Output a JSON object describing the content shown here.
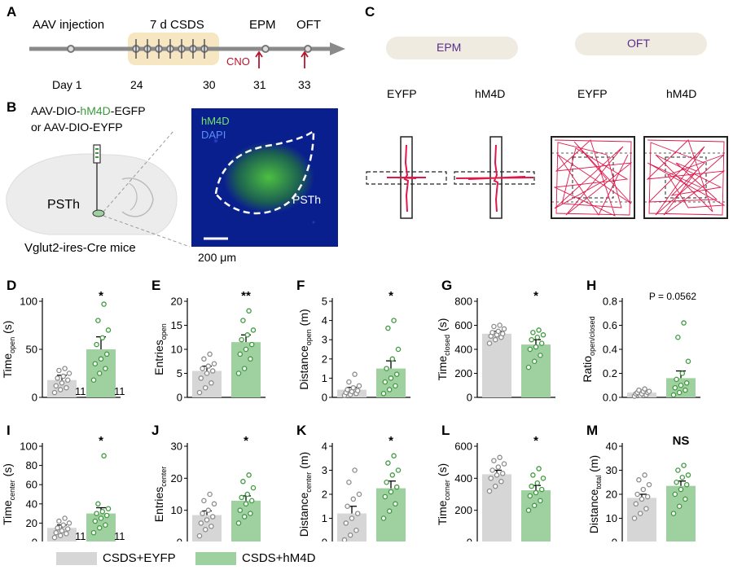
{
  "panels": {
    "A": "A",
    "B": "B",
    "C": "C",
    "D": "D",
    "E": "E",
    "F": "F",
    "G": "G",
    "H": "H",
    "I": "I",
    "J": "J",
    "K": "K",
    "L": "L",
    "M": "M"
  },
  "timeline": {
    "aav": "AAV injection",
    "csds": "7 d CSDS",
    "epm": "EPM",
    "oft": "OFT",
    "cno": "CNO",
    "days": [
      "Day 1",
      "24",
      "30",
      "31",
      "33"
    ]
  },
  "panel_b": {
    "line1_a": "AAV-DIO-",
    "line1_b": "hM4D",
    "line1_c": "-EGFP",
    "line2": "or AAV-DIO-EYFP",
    "region": "PSTh",
    "mice": "Vglut2-ires-Cre mice",
    "micro_label1": "hM4D",
    "micro_label2": "DAPI",
    "micro_region": "PSTh",
    "scale": "200 μm"
  },
  "panel_c": {
    "epm_title": "EPM",
    "oft_title": "OFT",
    "labels": [
      "EYFP",
      "hM4D",
      "EYFP",
      "hM4D"
    ]
  },
  "colors": {
    "eyfp": "#d6d6d6",
    "hm4d": "#9fd09f",
    "eyfp_dot": "#8c8c8c",
    "hm4d_dot": "#3f9a3f",
    "trace": "#e0184a",
    "timeline": "#8a8a8a"
  },
  "legend": {
    "eyfp": "CSDS+EYFP",
    "hm4d": "CSDS+hM4D"
  },
  "chart_data": [
    {
      "id": "D",
      "type": "bar",
      "categories": [
        "CSDS+EYFP",
        "CSDS+hM4D"
      ],
      "ylabel": "Time",
      "ysub": "open",
      "yunit": " (s)",
      "ylim": [
        0,
        100
      ],
      "yticks": [
        "0",
        "50",
        "100"
      ],
      "values": [
        18,
        50
      ],
      "sem": [
        5,
        13
      ],
      "sig": "*",
      "n_labels": [
        "11",
        "11"
      ],
      "points": [
        [
          5,
          8,
          10,
          12,
          15,
          18,
          20,
          22,
          25,
          28,
          30
        ],
        [
          18,
          25,
          30,
          35,
          40,
          45,
          55,
          62,
          70,
          80,
          97
        ]
      ]
    },
    {
      "id": "E",
      "type": "bar",
      "categories": [
        "CSDS+EYFP",
        "CSDS+hM4D"
      ],
      "ylabel": "Entries",
      "ysub": "open",
      "yunit": "",
      "ylim": [
        0,
        20
      ],
      "yticks": [
        "0",
        "5",
        "10",
        "15",
        "20"
      ],
      "values": [
        5.5,
        11.5
      ],
      "sem": [
        1,
        1.5
      ],
      "sig": "**",
      "points": [
        [
          1,
          2,
          3,
          4,
          5,
          5.5,
          6,
          6.5,
          7,
          8,
          9
        ],
        [
          5,
          6,
          8,
          9,
          10,
          11,
          12,
          13,
          14,
          16,
          18
        ]
      ]
    },
    {
      "id": "F",
      "type": "bar",
      "categories": [
        "CSDS+EYFP",
        "CSDS+hM4D"
      ],
      "ylabel": "Distance",
      "ysub": "open",
      "yunit": " (m)",
      "ylim": [
        0,
        5
      ],
      "yticks": [
        "0",
        "1",
        "2",
        "3",
        "4",
        "5"
      ],
      "values": [
        0.4,
        1.5
      ],
      "sem": [
        0.12,
        0.4
      ],
      "sig": "*",
      "points": [
        [
          0.1,
          0.15,
          0.2,
          0.25,
          0.3,
          0.35,
          0.4,
          0.5,
          0.6,
          0.8,
          1.2
        ],
        [
          0.2,
          0.4,
          0.6,
          0.8,
          1.0,
          1.2,
          1.5,
          2.0,
          2.5,
          3.6,
          4.0
        ]
      ]
    },
    {
      "id": "G",
      "type": "bar",
      "categories": [
        "CSDS+EYFP",
        "CSDS+hM4D"
      ],
      "ylabel": "Time",
      "ysub": "closed",
      "yunit": " (s)",
      "ylim": [
        0,
        800
      ],
      "yticks": [
        "0",
        "200",
        "400",
        "600",
        "800"
      ],
      "values": [
        530,
        440
      ],
      "sem": [
        20,
        40
      ],
      "sig": "*",
      "points": [
        [
          450,
          480,
          500,
          510,
          520,
          530,
          540,
          550,
          570,
          590,
          600
        ],
        [
          250,
          300,
          350,
          400,
          420,
          450,
          480,
          500,
          520,
          540,
          560
        ]
      ]
    },
    {
      "id": "H",
      "type": "bar",
      "categories": [
        "CSDS+EYFP",
        "CSDS+hM4D"
      ],
      "ylabel": "Ratio",
      "ysub": "open/closed",
      "yunit": "",
      "ylim": [
        0,
        0.8
      ],
      "yticks": [
        "0.0",
        "0.2",
        "0.4",
        "0.6",
        "0.8"
      ],
      "values": [
        0.04,
        0.16
      ],
      "sem": [
        0.01,
        0.06
      ],
      "sig": "P = 0.0562",
      "points": [
        [
          0.01,
          0.015,
          0.02,
          0.03,
          0.03,
          0.04,
          0.04,
          0.05,
          0.05,
          0.06,
          0.07
        ],
        [
          0.02,
          0.04,
          0.06,
          0.08,
          0.1,
          0.12,
          0.15,
          0.2,
          0.3,
          0.5,
          0.62
        ]
      ]
    },
    {
      "id": "I",
      "type": "bar",
      "categories": [
        "CSDS+EYFP",
        "CSDS+hM4D"
      ],
      "ylabel": "Time",
      "ysub": "center",
      "yunit": " (s)",
      "ylim": [
        0,
        100
      ],
      "yticks": [
        "0",
        "20",
        "40",
        "60",
        "80",
        "100"
      ],
      "values": [
        15,
        30
      ],
      "sem": [
        3,
        6
      ],
      "sig": "*",
      "n_labels": [
        "11",
        "11"
      ],
      "points": [
        [
          5,
          7,
          9,
          10,
          12,
          14,
          15,
          18,
          20,
          22,
          25
        ],
        [
          10,
          15,
          18,
          22,
          25,
          28,
          30,
          32,
          35,
          40,
          90
        ]
      ]
    },
    {
      "id": "J",
      "type": "bar",
      "categories": [
        "CSDS+EYFP",
        "CSDS+hM4D"
      ],
      "ylabel": "Entries",
      "ysub": "center",
      "yunit": "",
      "ylim": [
        0,
        30
      ],
      "yticks": [
        "0",
        "10",
        "20",
        "30"
      ],
      "values": [
        8.5,
        13
      ],
      "sem": [
        1.3,
        1.5
      ],
      "sig": "*",
      "points": [
        [
          2,
          4,
          5,
          6,
          7,
          8,
          9,
          10,
          12,
          13,
          15
        ],
        [
          6,
          8,
          9,
          10,
          12,
          13,
          14,
          15,
          17,
          19,
          21
        ]
      ]
    },
    {
      "id": "K",
      "type": "bar",
      "categories": [
        "CSDS+EYFP",
        "CSDS+hM4D"
      ],
      "ylabel": "Distance",
      "ysub": "center",
      "yunit": " (m)",
      "ylim": [
        0,
        4
      ],
      "yticks": [
        "0",
        "1",
        "2",
        "3",
        "4"
      ],
      "values": [
        1.2,
        2.25
      ],
      "sem": [
        0.3,
        0.3
      ],
      "sig": "*",
      "points": [
        [
          0.1,
          0.3,
          0.5,
          0.8,
          1.0,
          1.2,
          1.5,
          1.8,
          2.0,
          2.5,
          3.0
        ],
        [
          1.0,
          1.3,
          1.6,
          1.9,
          2.1,
          2.3,
          2.5,
          2.8,
          3.0,
          3.3,
          3.6
        ]
      ]
    },
    {
      "id": "L",
      "type": "bar",
      "categories": [
        "CSDS+EYFP",
        "CSDS+hM4D"
      ],
      "ylabel": "Time",
      "ysub": "corner",
      "yunit": " (s)",
      "ylim": [
        0,
        600
      ],
      "yticks": [
        "0",
        "200",
        "400",
        "600"
      ],
      "values": [
        425,
        325
      ],
      "sem": [
        25,
        30
      ],
      "sig": "*",
      "points": [
        [
          320,
          350,
          380,
          400,
          420,
          430,
          450,
          470,
          490,
          510,
          530
        ],
        [
          200,
          230,
          260,
          290,
          310,
          330,
          350,
          370,
          400,
          420,
          460
        ]
      ]
    },
    {
      "id": "M",
      "type": "bar",
      "categories": [
        "CSDS+EYFP",
        "CSDS+hM4D"
      ],
      "ylabel": "Distance",
      "ysub": "total",
      "yunit": " (m)",
      "ylim": [
        0,
        40
      ],
      "yticks": [
        "0",
        "10",
        "20",
        "30",
        "40"
      ],
      "values": [
        18.5,
        23.5
      ],
      "sem": [
        1.5,
        2
      ],
      "sig": "NS",
      "points": [
        [
          10,
          12,
          14,
          16,
          18,
          19,
          20,
          22,
          24,
          26,
          28
        ],
        [
          12,
          15,
          18,
          20,
          22,
          24,
          25,
          27,
          28,
          30,
          32
        ]
      ]
    }
  ]
}
